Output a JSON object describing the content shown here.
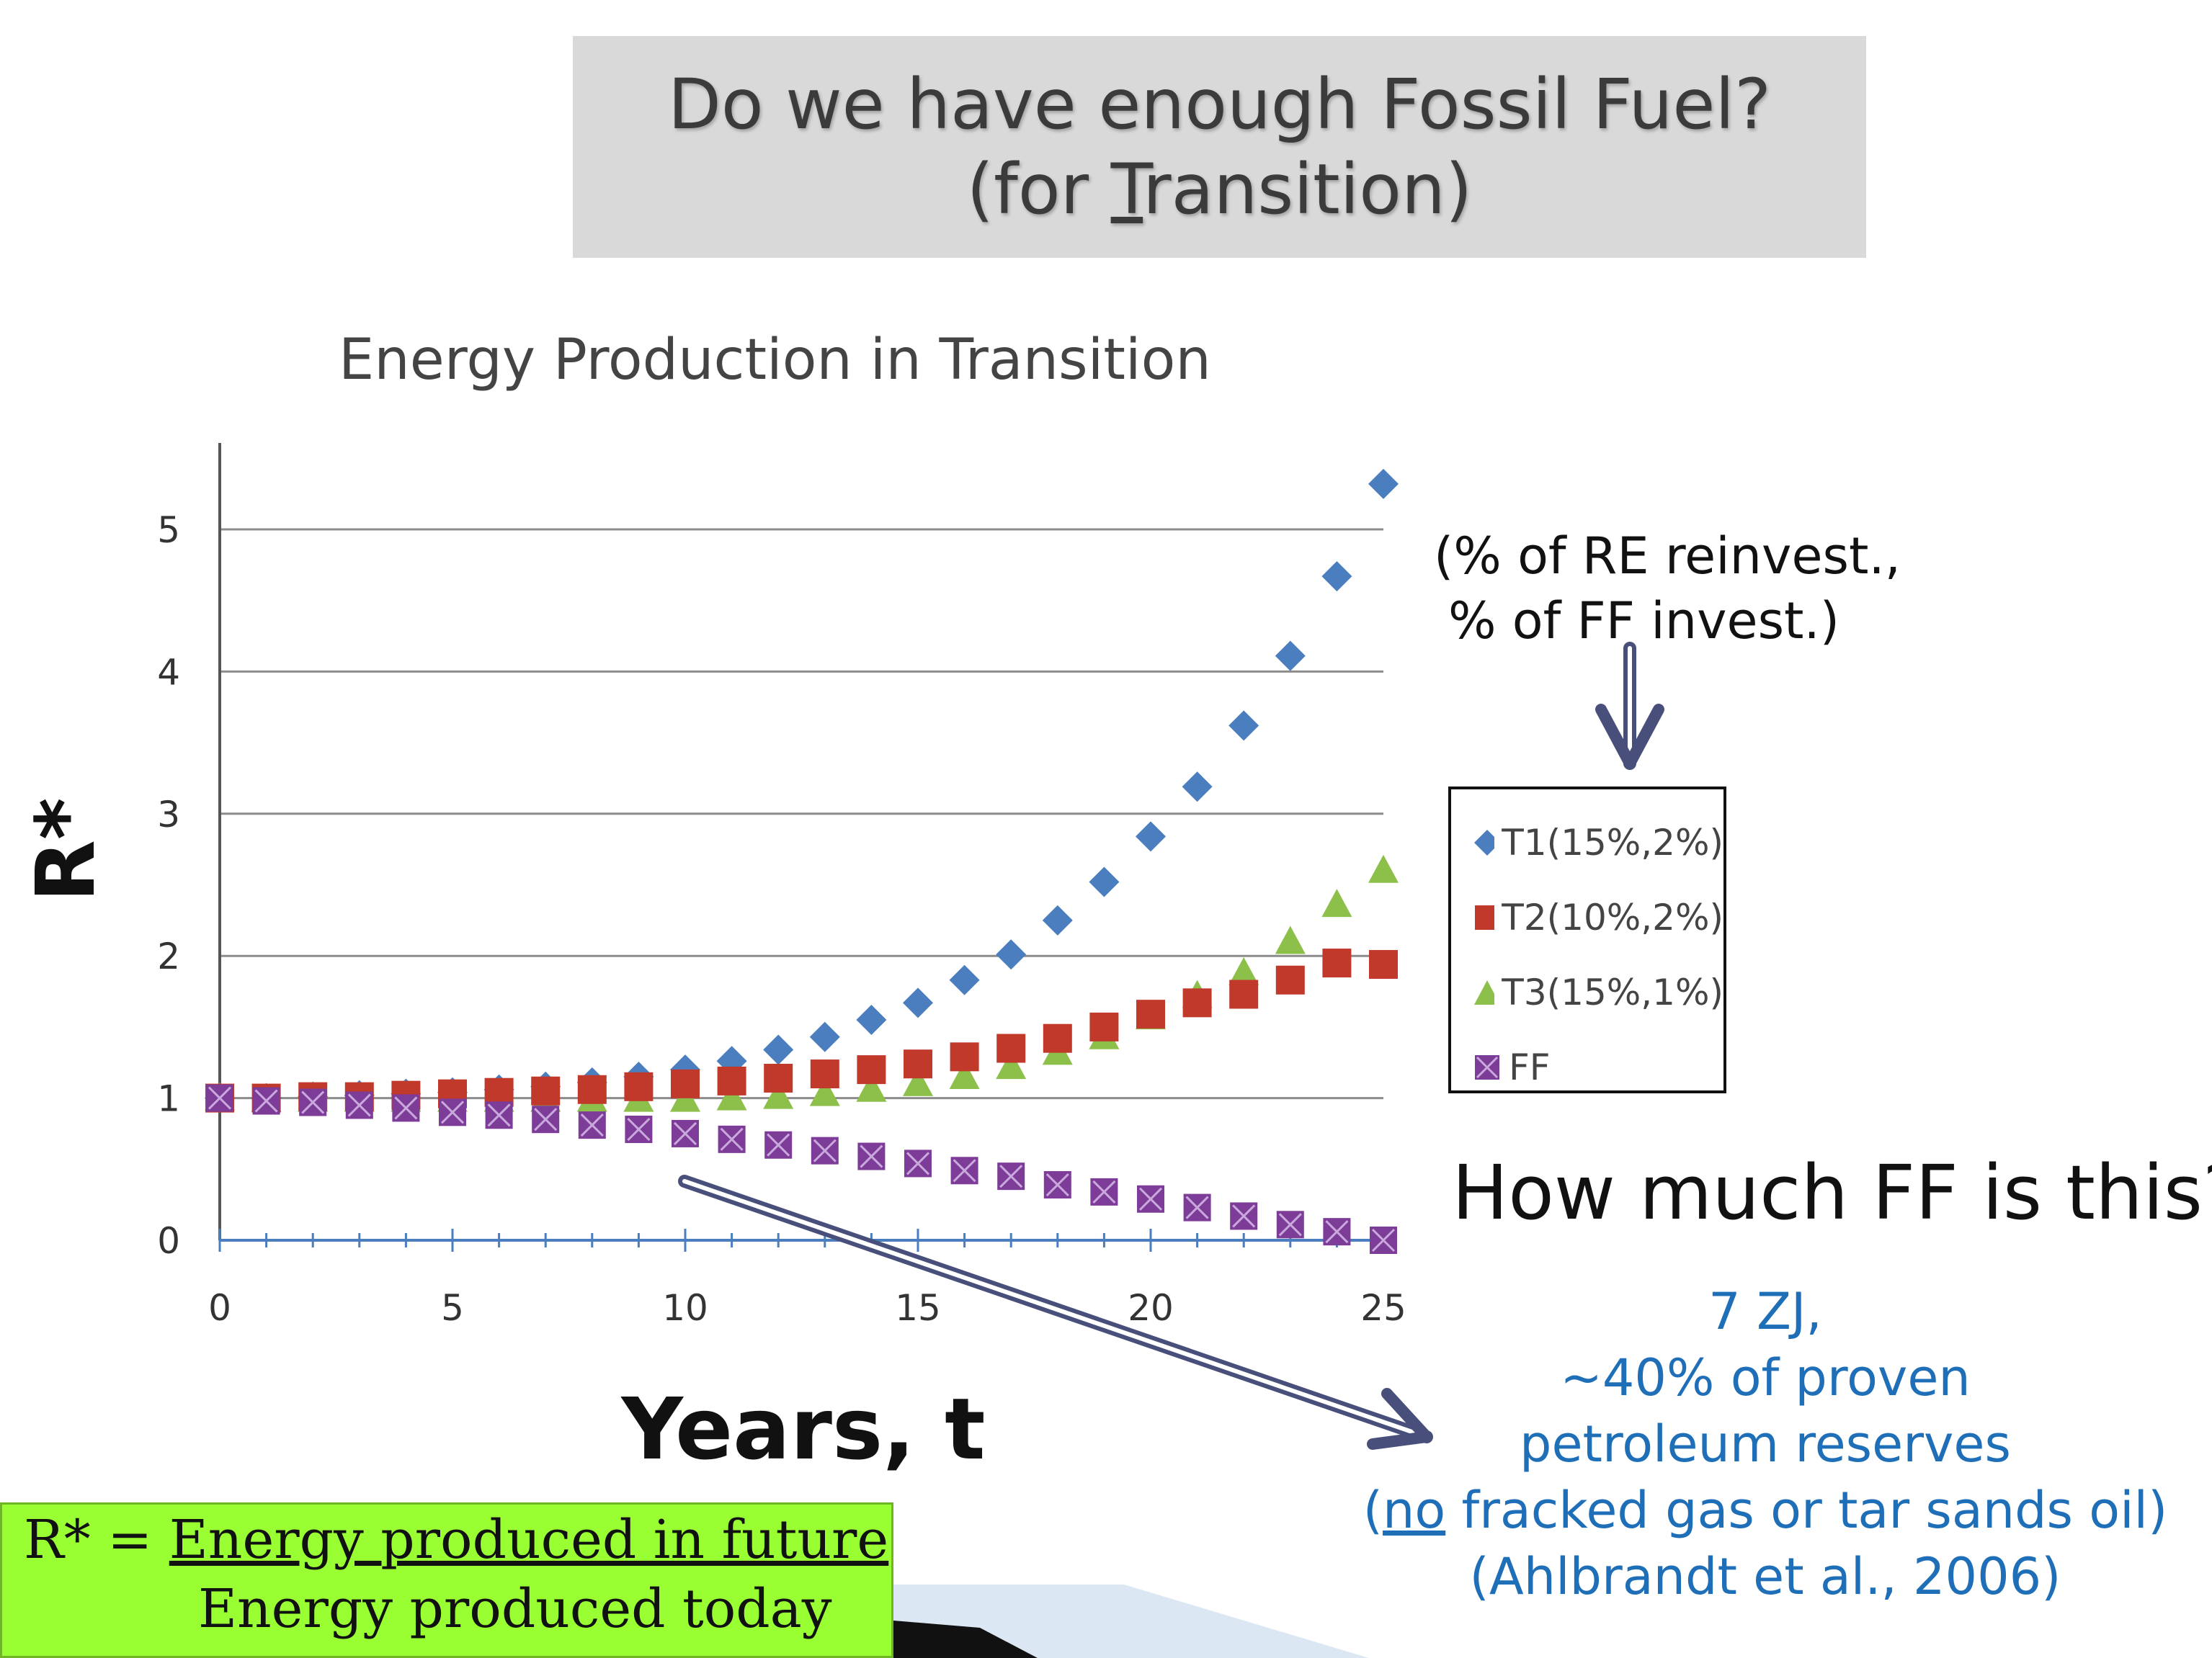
{
  "slide": {
    "title_line1": "Do we have enough Fossil Fuel?",
    "title_line2_pre": "(for ",
    "title_line2_u": "T",
    "title_line2_post": "ransition)"
  },
  "note": {
    "line1": "(% of RE reinvest.,",
    "line2": "% of FF invest.)"
  },
  "question": "How much FF is this?",
  "answer": {
    "line1": "7 ZJ,",
    "line2": "~40% of proven",
    "line3": "petroleum reserves",
    "line4_open": "(",
    "line4_u": "no",
    "line4_rest": " fracked gas or tar sands oil)",
    "line5": "(Ahlbrandt et al., 2006)"
  },
  "definition": {
    "lhs": "R* = ",
    "numerator": "Energy produced in future",
    "denominator": "Energy produced today"
  },
  "colors": {
    "T1": "#4a7ebf",
    "T2": "#c0392b",
    "T3": "#8cc04b",
    "FF": "#7d3c98",
    "arrow": "#474f7a",
    "answer": "#1f6fb8",
    "definition_bg": "#99ff33"
  },
  "chart_data": {
    "type": "scatter",
    "title": "Energy Production in Transition",
    "xlabel": "Years, t",
    "ylabel": "R*",
    "xlim": [
      0,
      25
    ],
    "ylim": [
      0,
      5
    ],
    "xticks": [
      0,
      5,
      10,
      15,
      20,
      25
    ],
    "yticks": [
      0,
      1,
      2,
      3,
      4,
      5
    ],
    "grid": "horizontal",
    "legend_position": "right",
    "x": [
      0,
      1,
      2,
      3,
      4,
      5,
      6,
      7,
      8,
      9,
      10,
      11,
      12,
      13,
      14,
      15,
      16,
      17,
      18,
      19,
      20,
      21,
      22,
      23,
      24,
      25
    ],
    "series": [
      {
        "name": "T1(15%,2%)",
        "marker": "diamond",
        "values": [
          1.0,
          1.0,
          1.01,
          1.02,
          1.03,
          1.04,
          1.06,
          1.08,
          1.11,
          1.15,
          1.2,
          1.26,
          1.34,
          1.43,
          1.55,
          1.67,
          1.83,
          2.01,
          2.25,
          2.52,
          2.84,
          3.19,
          3.62,
          4.11,
          4.67,
          5.32
        ]
      },
      {
        "name": "T2(10%,2%)",
        "marker": "square",
        "values": [
          1.0,
          1.0,
          1.01,
          1.01,
          1.02,
          1.03,
          1.04,
          1.05,
          1.06,
          1.08,
          1.1,
          1.12,
          1.14,
          1.17,
          1.2,
          1.24,
          1.29,
          1.35,
          1.42,
          1.5,
          1.59,
          1.67,
          1.73,
          1.83,
          1.95,
          1.94
        ]
      },
      {
        "name": "T3(15%,1%)",
        "marker": "triangle",
        "values": [
          1.0,
          0.99,
          0.99,
          0.99,
          0.99,
          0.99,
          0.99,
          0.99,
          0.99,
          0.99,
          0.99,
          1.0,
          1.01,
          1.03,
          1.06,
          1.1,
          1.15,
          1.22,
          1.32,
          1.43,
          1.57,
          1.72,
          1.88,
          2.1,
          2.36,
          2.6
        ]
      },
      {
        "name": "FF",
        "marker": "square-x",
        "values": [
          1.0,
          0.98,
          0.97,
          0.95,
          0.93,
          0.9,
          0.88,
          0.85,
          0.81,
          0.78,
          0.75,
          0.71,
          0.67,
          0.63,
          0.59,
          0.54,
          0.49,
          0.45,
          0.39,
          0.34,
          0.29,
          0.23,
          0.17,
          0.11,
          0.06,
          0.0
        ]
      }
    ]
  }
}
